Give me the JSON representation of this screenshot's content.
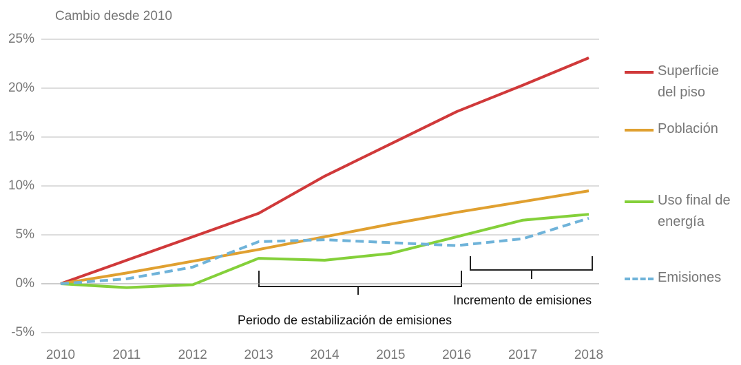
{
  "chart_data": {
    "type": "line",
    "y_axis_label": "Cambio desde 2010",
    "x": [
      2010,
      2011,
      2012,
      2013,
      2014,
      2015,
      2016,
      2017,
      2018
    ],
    "xlim": [
      2010,
      2018
    ],
    "xticks": [
      2010,
      2011,
      2012,
      2013,
      2014,
      2015,
      2016,
      2017,
      2018
    ],
    "ylim": [
      -5,
      25
    ],
    "yticks": [
      {
        "value": -5,
        "label": "-5%"
      },
      {
        "value": 0,
        "label": "0%"
      },
      {
        "value": 5,
        "label": "5%"
      },
      {
        "value": 10,
        "label": "10%"
      },
      {
        "value": 15,
        "label": "15%"
      },
      {
        "value": 20,
        "label": "20%"
      },
      {
        "value": 25,
        "label": "25%"
      }
    ],
    "grid": true,
    "series": [
      {
        "name": "Superficie del piso",
        "color": "#d0393a",
        "dashed": false,
        "values": [
          0,
          2.4,
          4.8,
          7.2,
          11,
          14.3,
          17.6,
          20.3,
          23.1
        ]
      },
      {
        "name": "Población",
        "color": "#e0a030",
        "dashed": false,
        "values": [
          0,
          1.1,
          2.3,
          3.5,
          4.8,
          6.1,
          7.3,
          8.4,
          9.5
        ]
      },
      {
        "name": "Uso final de energía",
        "color": "#84d03a",
        "dashed": false,
        "values": [
          0,
          -0.4,
          -0.1,
          2.6,
          2.4,
          3.1,
          4.8,
          6.5,
          7.1
        ]
      },
      {
        "name": "Emisiones",
        "color": "#6fb3d9",
        "dashed": true,
        "values": [
          0,
          0.5,
          1.7,
          4.3,
          4.5,
          4.2,
          3.9,
          4.6,
          6.7
        ]
      }
    ],
    "annotations": [
      "Periodo de estabilización de emisiones",
      "Incremento de emisiones"
    ]
  }
}
